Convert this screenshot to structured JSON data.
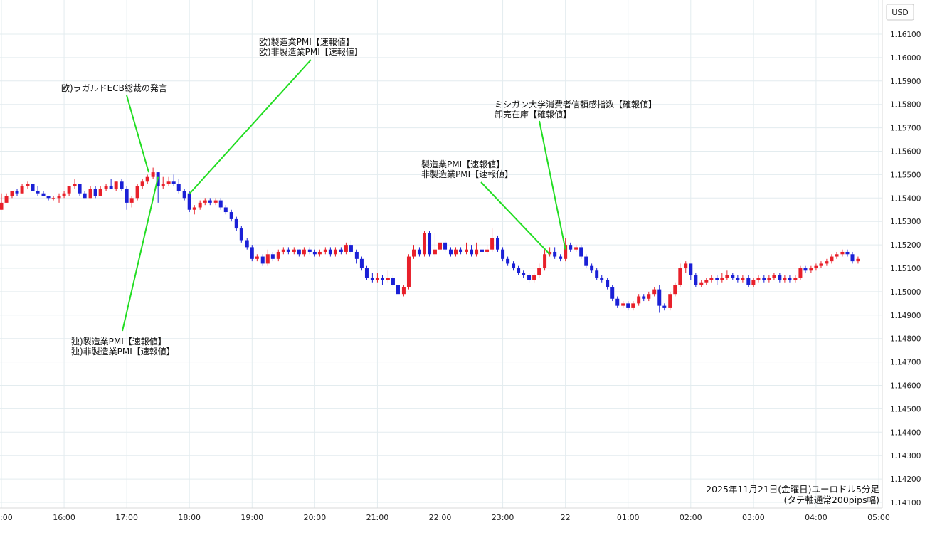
{
  "chart_data": {
    "type": "candlestick",
    "currency_label": "USD",
    "footnote_line1": "2025年11月21日(金曜日)ユーロドル5分足",
    "footnote_line2": "(タテ軸通常200pips幅)",
    "ylim": [
      1.141,
      1.162
    ],
    "y_ticks": [
      "1.16100",
      "1.16000",
      "1.15900",
      "1.15800",
      "1.15700",
      "1.15600",
      "1.15500",
      "1.15400",
      "1.15300",
      "1.15200",
      "1.15100",
      "1.15000",
      "1.14900",
      "1.14800",
      "1.14700",
      "1.14600",
      "1.14500",
      "1.14400",
      "1.14300",
      "1.14200",
      "1.14100"
    ],
    "x_ticks": [
      "16:00",
      "17:00",
      "18:00",
      "19:00",
      "20:00",
      "21:00",
      "22:00",
      "23:00",
      "22",
      "01:00",
      "02:00",
      "03:00",
      "04:00",
      "05:00"
    ],
    "x_tick_values": [
      16,
      17,
      18,
      19,
      20,
      21,
      22,
      23,
      24,
      25,
      26,
      27,
      28,
      29
    ],
    "first_tick_partial": ":00",
    "xlim": [
      15.0,
      29.0
    ],
    "colors": {
      "up": "#e8202a",
      "down": "#1a20d6",
      "annotation_line": "#22dd22",
      "grid": "#e3ecef"
    },
    "annotations": [
      {
        "lines": [
          "欧)ラガルドECB総裁の発言"
        ],
        "target_x": 17.35,
        "target_y": 1.1551
      },
      {
        "lines": [
          "欧)製造業PMI【速報値】",
          "欧)非製造業PMI【速報値】"
        ],
        "target_x": 18.0,
        "target_y": 1.15418
      },
      {
        "lines": [
          "独)製造業PMI【速報値】",
          "独)非製造業PMI【速報値】"
        ],
        "target_x": 17.5,
        "target_y": 1.1549
      },
      {
        "lines": [
          "製造業PMI【速報値】",
          "非製造業PMI【速報値】"
        ],
        "target_x": 23.75,
        "target_y": 1.1516
      },
      {
        "lines": [
          "ミシガン大学消費者信頼感指数【確報値】",
          "卸売在庫【確報値】"
        ],
        "target_x": 24.0,
        "target_y": 1.1518
      }
    ],
    "candles": [
      [
        15.0,
        1.1535,
        1.1538,
        1.1542,
        1.1535
      ],
      [
        15.08,
        1.1538,
        1.1541,
        1.1542,
        1.1538
      ],
      [
        15.17,
        1.1541,
        1.1543,
        1.1543,
        1.154
      ],
      [
        15.25,
        1.1543,
        1.1542,
        1.1544,
        1.1541
      ],
      [
        15.33,
        1.1542,
        1.1545,
        1.1546,
        1.1542
      ],
      [
        15.42,
        1.1545,
        1.1546,
        1.1547,
        1.1544
      ],
      [
        15.5,
        1.1546,
        1.1543,
        1.1546,
        1.1543
      ],
      [
        15.58,
        1.1543,
        1.1542,
        1.1545,
        1.1541
      ],
      [
        15.67,
        1.1542,
        1.1541,
        1.1543,
        1.1541
      ],
      [
        15.75,
        1.1541,
        1.154,
        1.1541,
        1.1539
      ],
      [
        15.83,
        1.154,
        1.154,
        1.1541,
        1.1539
      ],
      [
        15.92,
        1.154,
        1.1541,
        1.1542,
        1.1538
      ],
      [
        16.0,
        1.1541,
        1.1542,
        1.1543,
        1.154
      ],
      [
        16.08,
        1.1542,
        1.1545,
        1.1545,
        1.1541
      ],
      [
        16.17,
        1.1545,
        1.1546,
        1.1548,
        1.1544
      ],
      [
        16.25,
        1.1546,
        1.1542,
        1.1546,
        1.1541
      ],
      [
        16.33,
        1.1542,
        1.154,
        1.1543,
        1.154
      ],
      [
        16.42,
        1.154,
        1.1544,
        1.1545,
        1.154
      ],
      [
        16.5,
        1.1544,
        1.1541,
        1.1545,
        1.154
      ],
      [
        16.58,
        1.1541,
        1.1544,
        1.1545,
        1.1541
      ],
      [
        16.67,
        1.1544,
        1.1545,
        1.1546,
        1.1543
      ],
      [
        16.75,
        1.1545,
        1.1544,
        1.1548,
        1.1544
      ],
      [
        16.83,
        1.1544,
        1.1547,
        1.1547,
        1.1543
      ],
      [
        16.92,
        1.1547,
        1.1544,
        1.1548,
        1.1543
      ],
      [
        17.0,
        1.1544,
        1.1538,
        1.1545,
        1.1535
      ],
      [
        17.08,
        1.1538,
        1.154,
        1.1541,
        1.1536
      ],
      [
        17.17,
        1.154,
        1.1545,
        1.1546,
        1.1539
      ],
      [
        17.25,
        1.1545,
        1.1547,
        1.1548,
        1.1544
      ],
      [
        17.33,
        1.1547,
        1.1549,
        1.155,
        1.1546
      ],
      [
        17.42,
        1.1549,
        1.1551,
        1.1553,
        1.1548
      ],
      [
        17.5,
        1.1551,
        1.1545,
        1.1551,
        1.1538
      ],
      [
        17.58,
        1.1545,
        1.1546,
        1.1549,
        1.1544
      ],
      [
        17.67,
        1.1546,
        1.1547,
        1.1549,
        1.1545
      ],
      [
        17.75,
        1.1547,
        1.1546,
        1.155,
        1.1545
      ],
      [
        17.83,
        1.1546,
        1.1543,
        1.1548,
        1.1542
      ],
      [
        17.92,
        1.1543,
        1.154,
        1.1544,
        1.1539
      ],
      [
        18.0,
        1.1542,
        1.1535,
        1.1543,
        1.1534
      ],
      [
        18.08,
        1.1535,
        1.1536,
        1.1537,
        1.1533
      ],
      [
        18.17,
        1.1536,
        1.1538,
        1.1539,
        1.1535
      ],
      [
        18.25,
        1.1538,
        1.1539,
        1.154,
        1.1537
      ],
      [
        18.33,
        1.1539,
        1.1538,
        1.154,
        1.1537
      ],
      [
        18.42,
        1.1538,
        1.1539,
        1.154,
        1.1537
      ],
      [
        18.5,
        1.1539,
        1.1536,
        1.154,
        1.1535
      ],
      [
        18.58,
        1.1536,
        1.1534,
        1.1537,
        1.1533
      ],
      [
        18.67,
        1.1534,
        1.1531,
        1.1535,
        1.153
      ],
      [
        18.75,
        1.1531,
        1.1527,
        1.1532,
        1.1526
      ],
      [
        18.83,
        1.1527,
        1.1522,
        1.1528,
        1.1521
      ],
      [
        18.92,
        1.1522,
        1.1519,
        1.1523,
        1.1518
      ],
      [
        19.0,
        1.1519,
        1.1514,
        1.152,
        1.1513
      ],
      [
        19.08,
        1.1514,
        1.1515,
        1.1516,
        1.1513
      ],
      [
        19.17,
        1.1515,
        1.1512,
        1.1516,
        1.1511
      ],
      [
        19.25,
        1.1512,
        1.1516,
        1.1518,
        1.1511
      ],
      [
        19.33,
        1.1516,
        1.1514,
        1.1517,
        1.1513
      ],
      [
        19.42,
        1.1514,
        1.1517,
        1.1518,
        1.1513
      ],
      [
        19.5,
        1.1517,
        1.1518,
        1.1519,
        1.1516
      ],
      [
        19.58,
        1.1518,
        1.1517,
        1.1519,
        1.1516
      ],
      [
        19.67,
        1.1517,
        1.1518,
        1.1519,
        1.1516
      ],
      [
        19.75,
        1.1518,
        1.1516,
        1.1518,
        1.1515
      ],
      [
        19.83,
        1.1516,
        1.1518,
        1.1519,
        1.1515
      ],
      [
        19.92,
        1.1518,
        1.1517,
        1.1519,
        1.1516
      ],
      [
        20.0,
        1.1517,
        1.1516,
        1.1518,
        1.1515
      ],
      [
        20.08,
        1.1516,
        1.1517,
        1.1518,
        1.1515
      ],
      [
        20.17,
        1.1517,
        1.1518,
        1.1519,
        1.1516
      ],
      [
        20.25,
        1.1518,
        1.1516,
        1.1519,
        1.1515
      ],
      [
        20.33,
        1.1516,
        1.1518,
        1.1519,
        1.1515
      ],
      [
        20.42,
        1.1518,
        1.1517,
        1.1519,
        1.1516
      ],
      [
        20.5,
        1.1517,
        1.152,
        1.1521,
        1.1516
      ],
      [
        20.58,
        1.152,
        1.1517,
        1.1522,
        1.1516
      ],
      [
        20.67,
        1.1517,
        1.1514,
        1.1518,
        1.1512
      ],
      [
        20.75,
        1.1514,
        1.151,
        1.1515,
        1.1509
      ],
      [
        20.83,
        1.151,
        1.1506,
        1.1511,
        1.1505
      ],
      [
        20.92,
        1.1506,
        1.1505,
        1.1508,
        1.1504
      ],
      [
        21.0,
        1.1505,
        1.1506,
        1.1508,
        1.1504
      ],
      [
        21.08,
        1.1506,
        1.1505,
        1.1507,
        1.1503
      ],
      [
        21.17,
        1.1505,
        1.1506,
        1.1509,
        1.1504
      ],
      [
        21.25,
        1.1506,
        1.1503,
        1.1507,
        1.1502
      ],
      [
        21.33,
        1.1503,
        1.1499,
        1.1504,
        1.1497
      ],
      [
        21.42,
        1.1499,
        1.1502,
        1.1503,
        1.1498
      ],
      [
        21.5,
        1.1502,
        1.1515,
        1.1516,
        1.1501
      ],
      [
        21.58,
        1.1515,
        1.1518,
        1.152,
        1.1514
      ],
      [
        21.67,
        1.1518,
        1.1516,
        1.1519,
        1.1515
      ],
      [
        21.75,
        1.1516,
        1.1525,
        1.1526,
        1.1515
      ],
      [
        21.83,
        1.1525,
        1.1516,
        1.1526,
        1.1515
      ],
      [
        21.92,
        1.1516,
        1.1518,
        1.1525,
        1.1515
      ],
      [
        22.0,
        1.1518,
        1.1521,
        1.1523,
        1.1517
      ],
      [
        22.08,
        1.1521,
        1.1518,
        1.1522,
        1.1517
      ],
      [
        22.17,
        1.1518,
        1.1516,
        1.1519,
        1.1515
      ],
      [
        22.25,
        1.1516,
        1.1518,
        1.1519,
        1.1515
      ],
      [
        22.33,
        1.1518,
        1.1517,
        1.1519,
        1.1516
      ],
      [
        22.42,
        1.1517,
        1.1518,
        1.1521,
        1.1516
      ],
      [
        22.5,
        1.1518,
        1.1516,
        1.152,
        1.1515
      ],
      [
        22.58,
        1.1516,
        1.1518,
        1.1521,
        1.1515
      ],
      [
        22.67,
        1.1518,
        1.1517,
        1.1519,
        1.1516
      ],
      [
        22.75,
        1.1517,
        1.1518,
        1.152,
        1.1516
      ],
      [
        22.83,
        1.1518,
        1.1523,
        1.1527,
        1.1517
      ],
      [
        22.92,
        1.1523,
        1.1518,
        1.1524,
        1.1517
      ],
      [
        23.0,
        1.1518,
        1.1514,
        1.1519,
        1.1513
      ],
      [
        23.08,
        1.1514,
        1.1512,
        1.1515,
        1.1511
      ],
      [
        23.17,
        1.1512,
        1.151,
        1.1513,
        1.1509
      ],
      [
        23.25,
        1.151,
        1.1508,
        1.1511,
        1.1507
      ],
      [
        23.33,
        1.1508,
        1.1507,
        1.1509,
        1.1506
      ],
      [
        23.42,
        1.1507,
        1.1505,
        1.1508,
        1.1504
      ],
      [
        23.5,
        1.1505,
        1.1507,
        1.1508,
        1.1504
      ],
      [
        23.58,
        1.1507,
        1.151,
        1.1512,
        1.1506
      ],
      [
        23.67,
        1.151,
        1.1516,
        1.1518,
        1.1509
      ],
      [
        23.75,
        1.1516,
        1.1517,
        1.1519,
        1.1515
      ],
      [
        23.83,
        1.1517,
        1.1515,
        1.1519,
        1.1514
      ],
      [
        23.92,
        1.1515,
        1.1514,
        1.1516,
        1.1513
      ],
      [
        24.0,
        1.1514,
        1.152,
        1.1523,
        1.1513
      ],
      [
        24.08,
        1.152,
        1.1518,
        1.1521,
        1.1517
      ],
      [
        24.17,
        1.1518,
        1.1519,
        1.152,
        1.1517
      ],
      [
        24.25,
        1.1519,
        1.1515,
        1.152,
        1.1514
      ],
      [
        24.33,
        1.1515,
        1.1511,
        1.1516,
        1.151
      ],
      [
        24.42,
        1.1511,
        1.1509,
        1.1512,
        1.1508
      ],
      [
        24.5,
        1.1509,
        1.1506,
        1.151,
        1.1505
      ],
      [
        24.58,
        1.1506,
        1.1505,
        1.1507,
        1.1504
      ],
      [
        24.67,
        1.1505,
        1.1502,
        1.1506,
        1.1501
      ],
      [
        24.75,
        1.1502,
        1.1497,
        1.1503,
        1.1496
      ],
      [
        24.83,
        1.1497,
        1.1494,
        1.1498,
        1.1493
      ],
      [
        24.92,
        1.1494,
        1.1495,
        1.1496,
        1.1493
      ],
      [
        25.0,
        1.1495,
        1.1493,
        1.1496,
        1.1492
      ],
      [
        25.08,
        1.1493,
        1.1495,
        1.1496,
        1.1492
      ],
      [
        25.17,
        1.1495,
        1.1498,
        1.1499,
        1.1494
      ],
      [
        25.25,
        1.1498,
        1.1497,
        1.1499,
        1.1496
      ],
      [
        25.33,
        1.1497,
        1.1499,
        1.15,
        1.1496
      ],
      [
        25.42,
        1.1499,
        1.1501,
        1.1502,
        1.1498
      ],
      [
        25.5,
        1.1501,
        1.1494,
        1.1503,
        1.1491
      ],
      [
        25.58,
        1.1494,
        1.1493,
        1.1495,
        1.1492
      ],
      [
        25.67,
        1.1493,
        1.1499,
        1.15,
        1.1492
      ],
      [
        25.75,
        1.1499,
        1.1503,
        1.1504,
        1.1498
      ],
      [
        25.83,
        1.1503,
        1.151,
        1.1512,
        1.1502
      ],
      [
        25.92,
        1.151,
        1.1512,
        1.1513,
        1.1508
      ],
      [
        26.0,
        1.1512,
        1.1507,
        1.1512,
        1.1505
      ],
      [
        26.08,
        1.1507,
        1.1503,
        1.1508,
        1.1502
      ],
      [
        26.17,
        1.1503,
        1.1504,
        1.1505,
        1.1502
      ],
      [
        26.25,
        1.1504,
        1.1505,
        1.1506,
        1.1503
      ],
      [
        26.33,
        1.1505,
        1.1506,
        1.1507,
        1.1504
      ],
      [
        26.42,
        1.1506,
        1.1505,
        1.1507,
        1.1503
      ],
      [
        26.5,
        1.1505,
        1.1506,
        1.1508,
        1.1504
      ],
      [
        26.58,
        1.1506,
        1.1507,
        1.1509,
        1.1505
      ],
      [
        26.67,
        1.1507,
        1.1506,
        1.1508,
        1.1505
      ],
      [
        26.75,
        1.1506,
        1.1505,
        1.1507,
        1.1504
      ],
      [
        26.83,
        1.1505,
        1.1506,
        1.1507,
        1.1504
      ],
      [
        26.92,
        1.1506,
        1.1503,
        1.1507,
        1.1502
      ],
      [
        27.0,
        1.1503,
        1.1505,
        1.1506,
        1.1502
      ],
      [
        27.08,
        1.1505,
        1.1506,
        1.1507,
        1.1504
      ],
      [
        27.17,
        1.1506,
        1.1505,
        1.1507,
        1.1504
      ],
      [
        27.25,
        1.1505,
        1.1506,
        1.1507,
        1.1504
      ],
      [
        27.33,
        1.1506,
        1.1507,
        1.1508,
        1.1505
      ],
      [
        27.42,
        1.1507,
        1.1505,
        1.1508,
        1.1504
      ],
      [
        27.5,
        1.1505,
        1.1506,
        1.1507,
        1.1504
      ],
      [
        27.58,
        1.1506,
        1.1505,
        1.1507,
        1.1504
      ],
      [
        27.67,
        1.1505,
        1.1506,
        1.1507,
        1.1504
      ],
      [
        27.75,
        1.1506,
        1.151,
        1.1511,
        1.1505
      ],
      [
        27.83,
        1.151,
        1.1509,
        1.1511,
        1.1508
      ],
      [
        27.92,
        1.1509,
        1.151,
        1.1511,
        1.1508
      ],
      [
        28.0,
        1.151,
        1.1511,
        1.1512,
        1.1509
      ],
      [
        28.08,
        1.1511,
        1.1512,
        1.1513,
        1.151
      ],
      [
        28.17,
        1.1512,
        1.1513,
        1.1514,
        1.1511
      ],
      [
        28.25,
        1.1513,
        1.1515,
        1.1516,
        1.1512
      ],
      [
        28.33,
        1.1515,
        1.1516,
        1.1517,
        1.1514
      ],
      [
        28.42,
        1.1516,
        1.1517,
        1.1518,
        1.1515
      ],
      [
        28.5,
        1.1517,
        1.1516,
        1.1518,
        1.1515
      ],
      [
        28.58,
        1.1516,
        1.1513,
        1.1517,
        1.1512
      ],
      [
        28.67,
        1.1513,
        1.1514,
        1.1515,
        1.1512
      ]
    ]
  }
}
